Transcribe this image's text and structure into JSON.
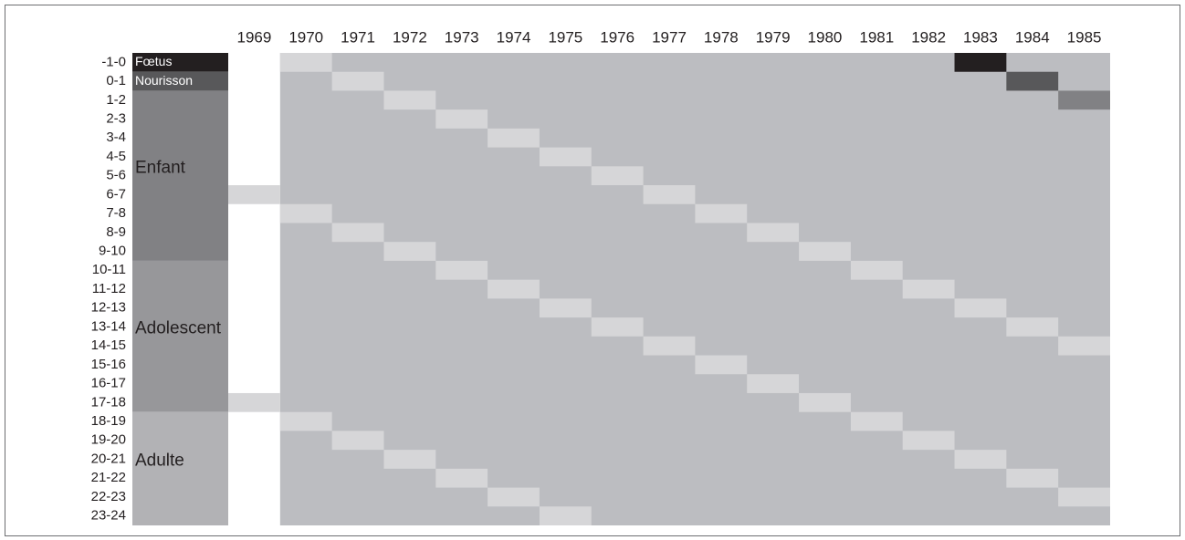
{
  "diagram": {
    "years": [
      "1969",
      "1970",
      "1971",
      "1972",
      "1973",
      "1974",
      "1975",
      "1976",
      "1977",
      "1978",
      "1979",
      "1980",
      "1981",
      "1982",
      "1983",
      "1984",
      "1985"
    ],
    "ages": [
      "-1-0",
      "0-1",
      "1-2",
      "2-3",
      "3-4",
      "4-5",
      "5-6",
      "6-7",
      "7-8",
      "8-9",
      "9-10",
      "10-11",
      "11-12",
      "12-13",
      "13-14",
      "14-15",
      "15-16",
      "16-17",
      "17-18",
      "18-19",
      "19-20",
      "20-21",
      "21-22",
      "22-23",
      "23-24"
    ],
    "stages": [
      {
        "name": "Fœtus",
        "rows": [
          0,
          0
        ],
        "fill": "#231f20",
        "text": "#ffffff",
        "small": true
      },
      {
        "name": "Nourisson",
        "rows": [
          1,
          1
        ],
        "fill": "#58585a",
        "text": "#ffffff",
        "small": true
      },
      {
        "name": "Enfant",
        "rows": [
          2,
          10
        ],
        "fill": "#818184",
        "text": "#231f20",
        "small": false
      },
      {
        "name": "Adolescent",
        "rows": [
          11,
          18
        ],
        "fill": "#97979a",
        "text": "#231f20",
        "small": false
      },
      {
        "name": "Adulte",
        "rows": [
          19,
          24
        ],
        "fill": "#b2b2b5",
        "text": "#231f20",
        "small": false
      }
    ],
    "grid_color": "#bcbdc1",
    "light_color": "#d6d6d8",
    "light_cells": [
      [
        0,
        1
      ],
      [
        1,
        2
      ],
      [
        2,
        3
      ],
      [
        3,
        4
      ],
      [
        4,
        5
      ],
      [
        5,
        6
      ],
      [
        6,
        7
      ],
      [
        7,
        8
      ],
      [
        8,
        9
      ],
      [
        9,
        10
      ],
      [
        10,
        11
      ],
      [
        11,
        12
      ],
      [
        12,
        13
      ],
      [
        13,
        14
      ],
      [
        14,
        15
      ],
      [
        15,
        16
      ],
      [
        7,
        0
      ],
      [
        8,
        1
      ],
      [
        9,
        2
      ],
      [
        10,
        3
      ],
      [
        11,
        4
      ],
      [
        12,
        5
      ],
      [
        13,
        6
      ],
      [
        14,
        7
      ],
      [
        15,
        8
      ],
      [
        16,
        9
      ],
      [
        17,
        10
      ],
      [
        18,
        11
      ],
      [
        19,
        12
      ],
      [
        20,
        13
      ],
      [
        21,
        14
      ],
      [
        22,
        15
      ],
      [
        23,
        16
      ],
      [
        18,
        0
      ],
      [
        19,
        1
      ],
      [
        20,
        2
      ],
      [
        21,
        3
      ],
      [
        22,
        4
      ],
      [
        23,
        5
      ],
      [
        24,
        6
      ]
    ],
    "marked_cells": [
      {
        "row": 0,
        "col": 14,
        "fill": "#231f20"
      },
      {
        "row": 1,
        "col": 15,
        "fill": "#58585a"
      },
      {
        "row": 2,
        "col": 16,
        "fill": "#818184"
      }
    ]
  }
}
